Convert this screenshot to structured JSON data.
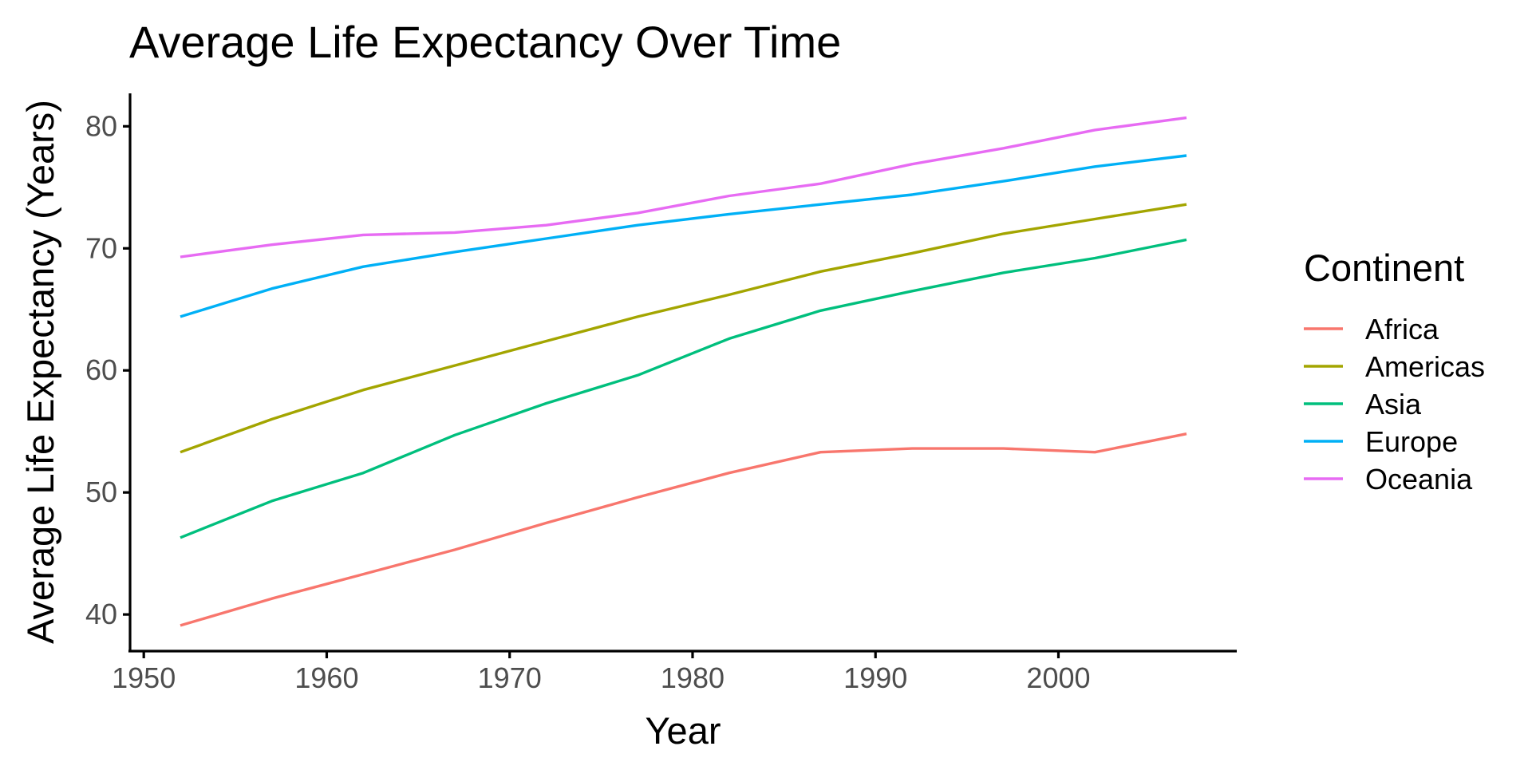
{
  "chart_data": {
    "type": "line",
    "title": "Average Life Expectancy Over Time",
    "xlabel": "Year",
    "ylabel": "Average Life Expectancy (Years)",
    "xlim": [
      1949.25,
      2009.75
    ],
    "ylim": [
      37.0,
      82.7
    ],
    "xticks": [
      1950,
      1960,
      1970,
      1980,
      1990,
      2000
    ],
    "yticks": [
      40,
      50,
      60,
      70,
      80
    ],
    "grid": false,
    "legend": {
      "title": "Continent",
      "placement": "right"
    },
    "x": [
      1952,
      1957,
      1962,
      1967,
      1972,
      1977,
      1982,
      1987,
      1992,
      1997,
      2002,
      2007
    ],
    "series": [
      {
        "name": "Africa",
        "color": "#F8766D",
        "values": [
          39.1,
          41.3,
          43.3,
          45.3,
          47.5,
          49.6,
          51.6,
          53.3,
          53.6,
          53.6,
          53.3,
          54.8
        ]
      },
      {
        "name": "Americas",
        "color": "#A3A500",
        "values": [
          53.3,
          56.0,
          58.4,
          60.4,
          62.4,
          64.4,
          66.2,
          68.1,
          69.6,
          71.2,
          72.4,
          73.6
        ]
      },
      {
        "name": "Asia",
        "color": "#00BF7D",
        "values": [
          46.3,
          49.3,
          51.6,
          54.7,
          57.3,
          59.6,
          62.6,
          64.9,
          66.5,
          68.0,
          69.2,
          70.7
        ]
      },
      {
        "name": "Europe",
        "color": "#00B0F6",
        "values": [
          64.4,
          66.7,
          68.5,
          69.7,
          70.8,
          71.9,
          72.8,
          73.6,
          74.4,
          75.5,
          76.7,
          77.6
        ]
      },
      {
        "name": "Oceania",
        "color": "#E76BF3",
        "values": [
          69.3,
          70.3,
          71.1,
          71.3,
          71.9,
          72.9,
          74.3,
          75.3,
          76.9,
          78.2,
          79.7,
          80.7
        ]
      }
    ]
  }
}
